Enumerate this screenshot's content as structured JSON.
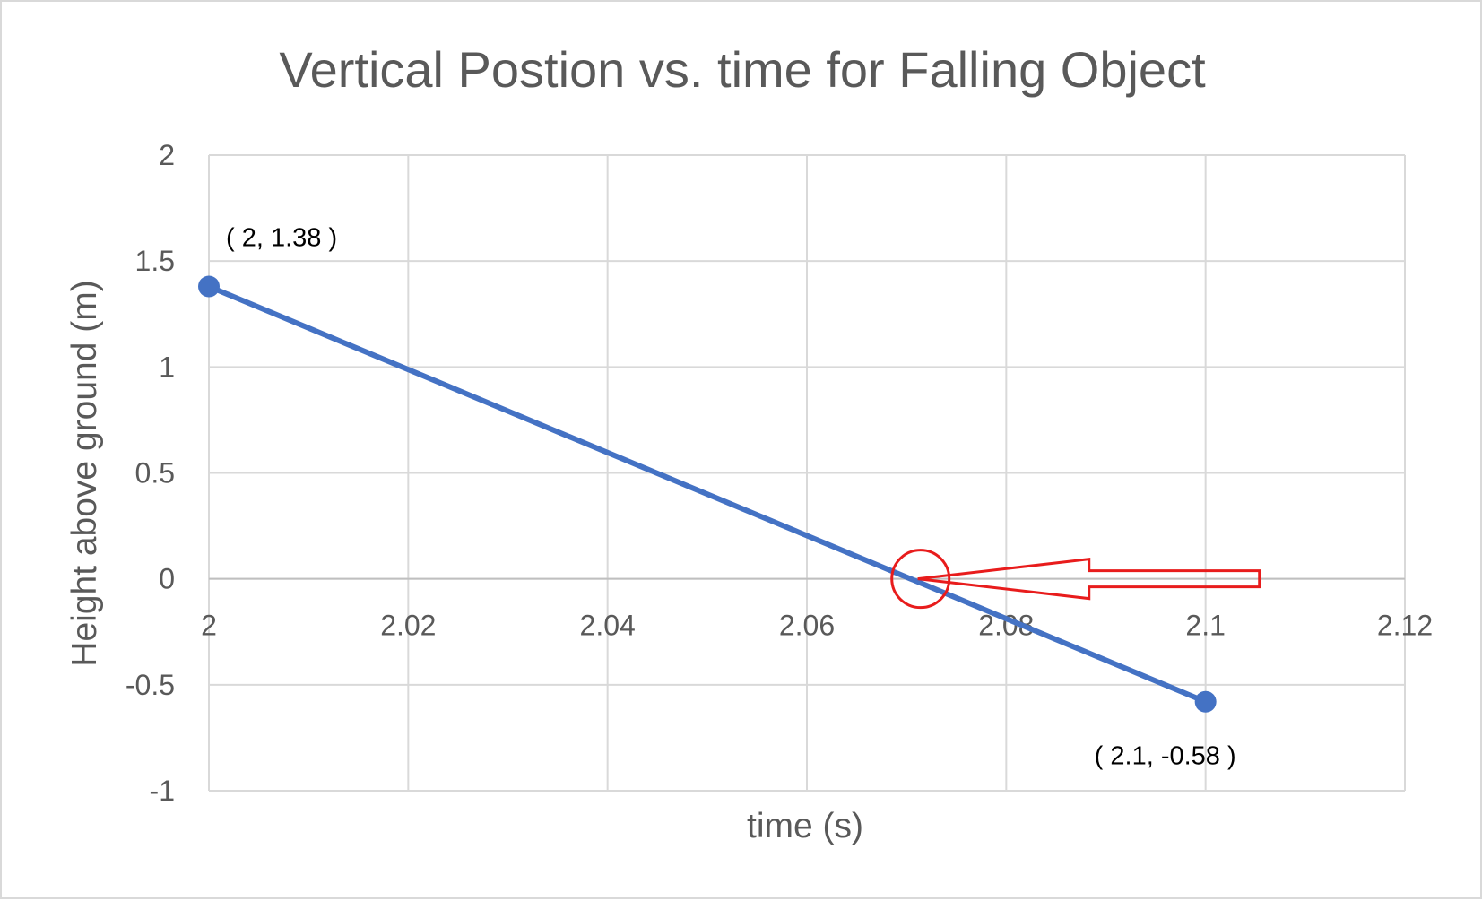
{
  "chart_data": {
    "type": "scatter",
    "title": "Vertical Postion vs. time for Falling Object",
    "xlabel": "time (s)",
    "ylabel": "Height above ground (m)",
    "xlim": [
      2,
      2.12
    ],
    "ylim": [
      -1,
      2
    ],
    "x_ticks": [
      "2",
      "2.02",
      "2.04",
      "2.06",
      "2.08",
      "2.1",
      "2.12"
    ],
    "y_ticks": [
      "2",
      "1.5",
      "1",
      "0.5",
      "0",
      "-0.5",
      "-1"
    ],
    "grid": true,
    "legend": "none",
    "series": [
      {
        "x": [
          2,
          2.1
        ],
        "y": [
          1.38,
          -0.58
        ],
        "style": "line-with-markers",
        "color": "#4472c4"
      }
    ],
    "data_labels": [
      {
        "text": "( 2, 1.38 )",
        "x": 2,
        "y": 1.38
      },
      {
        "text": "( 2.1, -0.58 )",
        "x": 2.1,
        "y": -0.58
      }
    ],
    "annotations": [
      {
        "type": "circle-and-arrow",
        "target_x": 2.0714,
        "target_y": 0,
        "color": "#e81c1c",
        "description_shape": "red circle around x-intercept with hollow arrow pointing left at it"
      }
    ]
  },
  "colors": {
    "series": "#4472c4",
    "grid": "#d9d9d9",
    "text": "#595959",
    "annotation": "#e81c1c"
  }
}
